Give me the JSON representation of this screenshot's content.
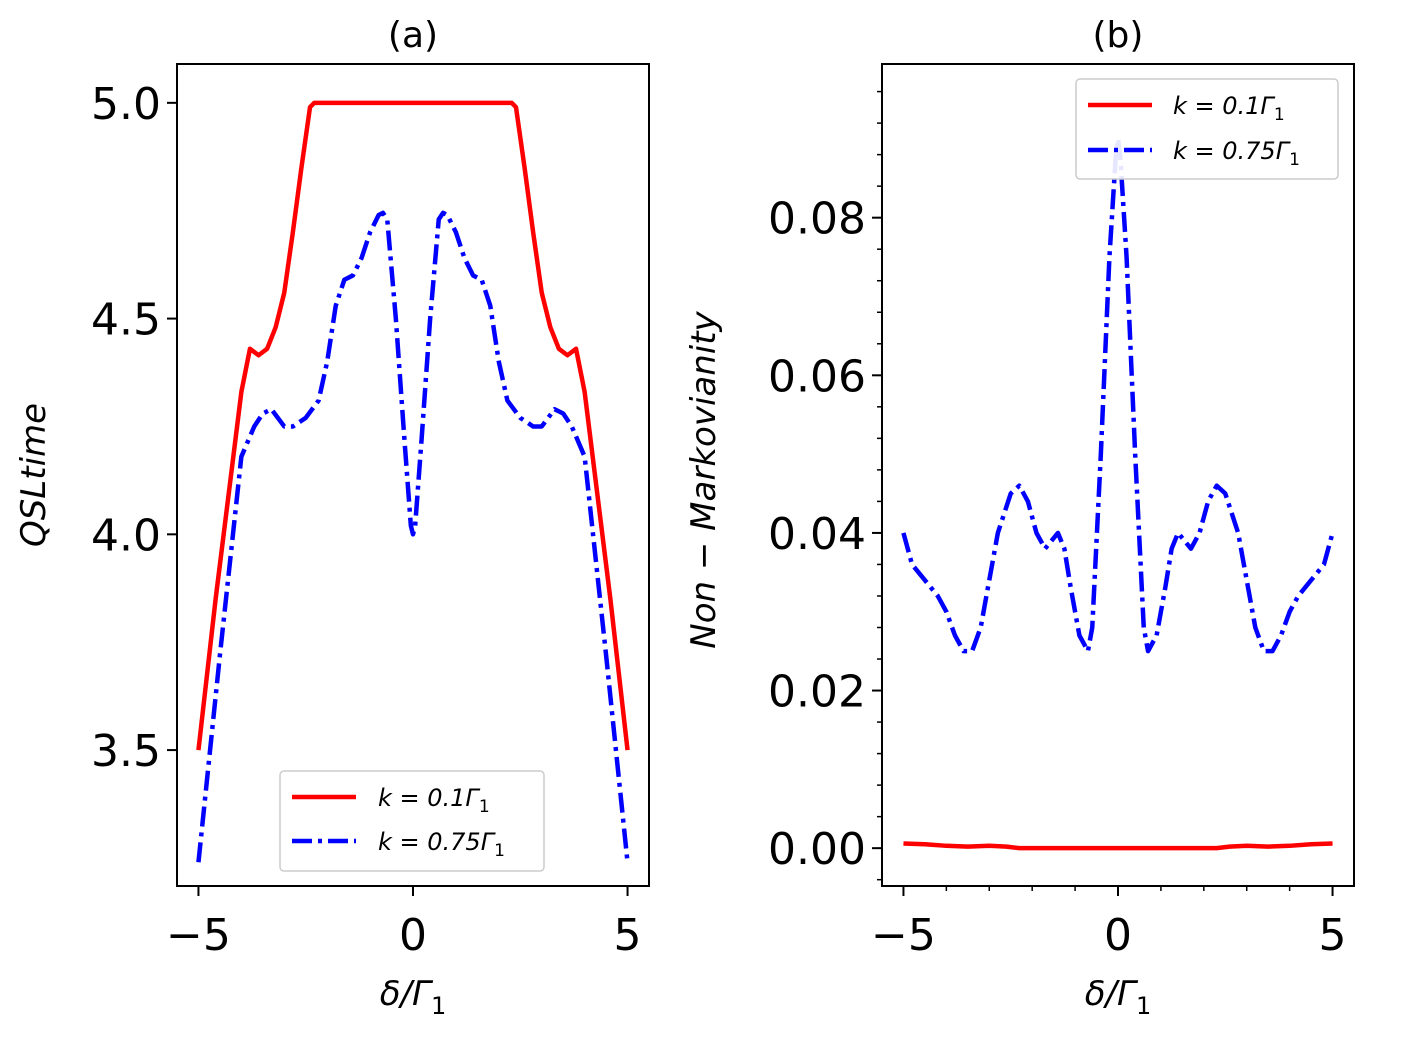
{
  "chart_data": [
    {
      "type": "line",
      "title": "(a)",
      "xlabel": "δ/Γ",
      "xlabel_sub": "1",
      "ylabel": "QSLtime",
      "xlim": [
        -5.5,
        5.5
      ],
      "ylim": [
        3.185,
        5.09
      ],
      "xticks": [
        -5,
        0,
        5
      ],
      "xtick_labels": [
        "−5",
        "0",
        "5"
      ],
      "yticks": [
        3.5,
        4.0,
        4.5,
        5.0
      ],
      "ytick_labels": [
        "3.5",
        "4.0",
        "4.5",
        "5.0"
      ],
      "legend": "lower-center",
      "series": [
        {
          "name": "k = 0.1Γ1",
          "legend_label": "k = 0.1Γ",
          "legend_sub": "1",
          "color": "#ff0000",
          "style": "solid",
          "x": [
            -5,
            -4.6,
            -4.0,
            -3.8,
            -3.6,
            -3.4,
            -3.2,
            -3.0,
            -2.8,
            -2.6,
            -2.4,
            -2.3,
            -2.0,
            0,
            2.0,
            2.3,
            2.4,
            2.6,
            2.8,
            3.0,
            3.2,
            3.4,
            3.6,
            3.8,
            4.0,
            4.6,
            5
          ],
          "y": [
            3.5,
            3.85,
            4.33,
            4.43,
            4.415,
            4.43,
            4.48,
            4.56,
            4.7,
            4.85,
            4.99,
            5.0,
            5.0,
            5.0,
            5.0,
            5.0,
            4.99,
            4.85,
            4.7,
            4.56,
            4.48,
            4.43,
            4.415,
            4.43,
            4.33,
            3.85,
            3.5
          ]
        },
        {
          "name": "k = 0.75Γ1",
          "legend_label": "k = 0.75Γ",
          "legend_sub": "1",
          "color": "#0000ff",
          "style": "dashdot",
          "x": [
            -5,
            -4.5,
            -4.0,
            -3.7,
            -3.5,
            -3.3,
            -3.0,
            -2.8,
            -2.5,
            -2.2,
            -2.0,
            -1.8,
            -1.6,
            -1.4,
            -1.2,
            -1.0,
            -0.8,
            -0.7,
            -0.6,
            -0.4,
            -0.2,
            -0.05,
            0,
            0.05,
            0.2,
            0.4,
            0.6,
            0.7,
            0.8,
            1.0,
            1.2,
            1.4,
            1.6,
            1.8,
            2.0,
            2.2,
            2.5,
            2.8,
            3.0,
            3.3,
            3.5,
            3.7,
            4.0,
            4.5,
            5
          ],
          "y": [
            3.24,
            3.72,
            4.18,
            4.25,
            4.28,
            4.29,
            4.25,
            4.25,
            4.27,
            4.31,
            4.4,
            4.53,
            4.59,
            4.6,
            4.64,
            4.7,
            4.74,
            4.745,
            4.73,
            4.5,
            4.22,
            4.02,
            4.0,
            4.02,
            4.22,
            4.5,
            4.73,
            4.745,
            4.74,
            4.7,
            4.64,
            4.6,
            4.59,
            4.53,
            4.4,
            4.31,
            4.27,
            4.25,
            4.25,
            4.29,
            4.28,
            4.25,
            4.18,
            3.72,
            3.24
          ]
        }
      ]
    },
    {
      "type": "line",
      "title": "(b)",
      "xlabel": "δ/Γ",
      "xlabel_sub": "1",
      "ylabel": "Non − Markovianity",
      "xlim": [
        -5.5,
        5.5
      ],
      "ylim": [
        -0.0048,
        0.0995
      ],
      "xticks": [
        -5,
        0,
        5
      ],
      "xtick_labels": [
        "−5",
        "0",
        "5"
      ],
      "yticks": [
        0.0,
        0.02,
        0.04,
        0.06,
        0.08
      ],
      "ytick_labels": [
        "0.00",
        "0.02",
        "0.04",
        "0.06",
        "0.08"
      ],
      "legend": "top-right",
      "series": [
        {
          "name": "k = 0.1Γ1",
          "legend_label": "k = 0.1Γ",
          "legend_sub": "1",
          "color": "#ff0000",
          "style": "solid",
          "x": [
            -5,
            -4.5,
            -4.0,
            -3.5,
            -3.0,
            -2.6,
            -2.3,
            0,
            2.3,
            2.6,
            3.0,
            3.5,
            4.0,
            4.5,
            5
          ],
          "y": [
            0.0006,
            0.0005,
            0.0003,
            0.0002,
            0.0003,
            0.0002,
            0.0,
            0.0,
            0.0,
            0.0002,
            0.0003,
            0.0002,
            0.0003,
            0.0005,
            0.0006
          ],
          "fixed_y_note": ""
        },
        {
          "name": "k = 0.75Γ1",
          "legend_label": "k = 0.75Γ",
          "legend_sub": "1",
          "color": "#0000ff",
          "style": "dashdot",
          "x": [
            -5,
            -4.8,
            -4.5,
            -4.2,
            -4.0,
            -3.8,
            -3.6,
            -3.4,
            -3.2,
            -3.0,
            -2.8,
            -2.5,
            -2.3,
            -2.1,
            -1.9,
            -1.7,
            -1.55,
            -1.4,
            -1.25,
            -1.1,
            -0.9,
            -0.7,
            -0.6,
            -0.4,
            -0.2,
            -0.05,
            0,
            0.05,
            0.2,
            0.4,
            0.6,
            0.7,
            0.9,
            1.1,
            1.25,
            1.4,
            1.55,
            1.7,
            1.9,
            2.1,
            2.3,
            2.5,
            2.8,
            3.0,
            3.2,
            3.4,
            3.6,
            3.8,
            4.0,
            4.2,
            4.5,
            4.8,
            5
          ],
          "y": [
            0.04,
            0.036,
            0.034,
            0.032,
            0.03,
            0.027,
            0.025,
            0.025,
            0.028,
            0.034,
            0.04,
            0.045,
            0.046,
            0.044,
            0.04,
            0.038,
            0.039,
            0.04,
            0.038,
            0.033,
            0.027,
            0.025,
            0.028,
            0.05,
            0.075,
            0.088,
            0.09,
            0.088,
            0.075,
            0.05,
            0.028,
            0.025,
            0.027,
            0.033,
            0.038,
            0.04,
            0.039,
            0.038,
            0.04,
            0.044,
            0.046,
            0.045,
            0.04,
            0.034,
            0.028,
            0.025,
            0.025,
            0.027,
            0.03,
            0.032,
            0.034,
            0.036,
            0.04
          ]
        }
      ]
    }
  ]
}
